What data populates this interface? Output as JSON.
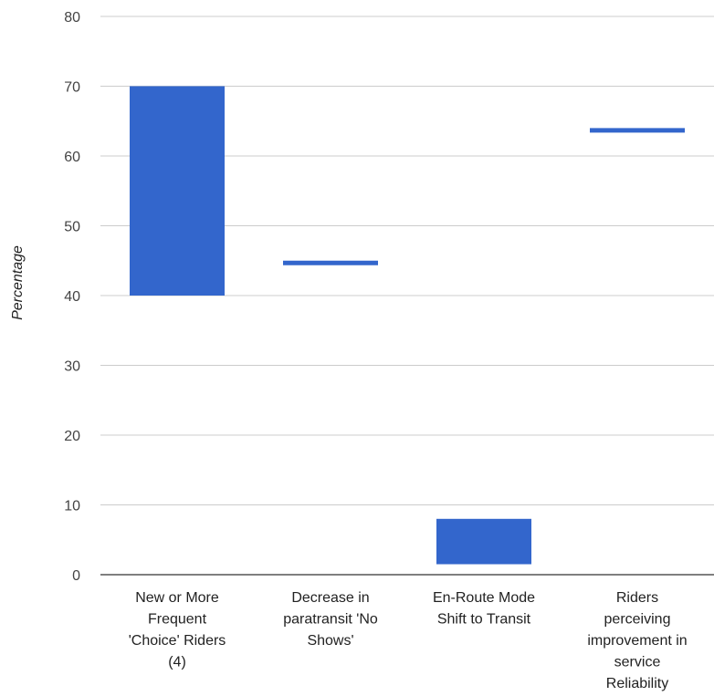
{
  "chart_data": {
    "type": "bar",
    "ylabel": "Percentage",
    "ylim": [
      0,
      80
    ],
    "yticks": [
      0,
      10,
      20,
      30,
      40,
      50,
      60,
      70,
      80
    ],
    "grid": true,
    "categories": [
      [
        "New or More",
        "Frequent",
        "'Choice' Riders",
        "(4)"
      ],
      [
        "Decrease in",
        "paratransit 'No",
        "Shows'"
      ],
      [
        "En-Route Mode",
        "Shift to Transit"
      ],
      [
        "Riders",
        "perceiving",
        "improvement in",
        "service",
        "Reliability"
      ]
    ],
    "ranges": [
      {
        "low": 40,
        "high": 70
      },
      {
        "low": 44.5,
        "high": 45
      },
      {
        "low": 1.5,
        "high": 8
      },
      {
        "low": 63.5,
        "high": 64
      }
    ],
    "colors": {
      "bar": "#3366cc",
      "grid": "#cccccc",
      "baseline": "#333333"
    }
  }
}
